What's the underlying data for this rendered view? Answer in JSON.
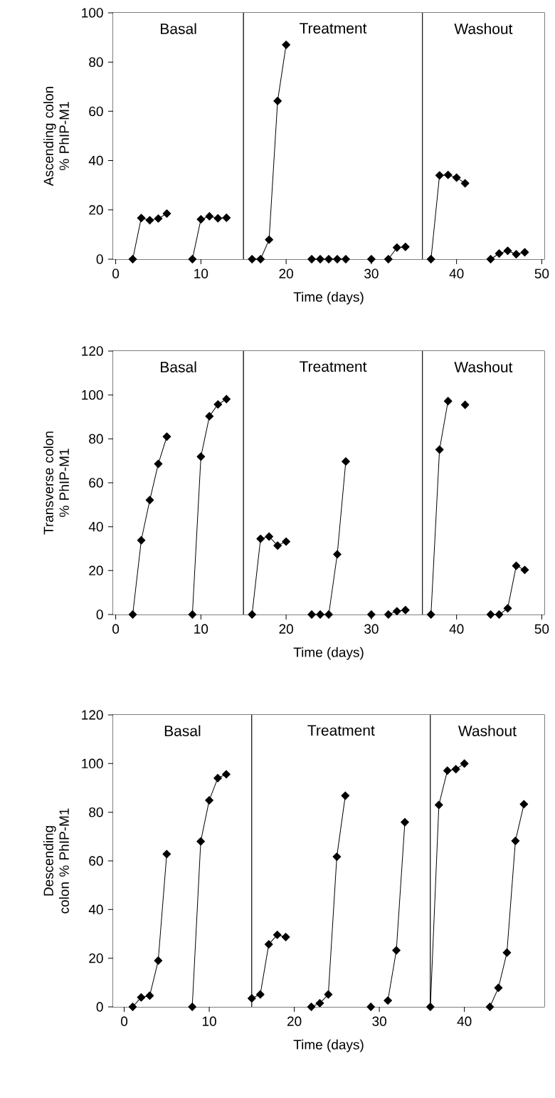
{
  "chart_data": [
    {
      "type": "line",
      "xlabel": "Time (days)",
      "ylabel": "Ascending colon % PhIP-M1",
      "marker": "diamond",
      "line_style": "solid",
      "xlim": [
        -0.3,
        50.3
      ],
      "ylim": [
        0,
        100
      ],
      "xticks": [
        0,
        10,
        20,
        30,
        40,
        50
      ],
      "yticks": [
        0,
        20,
        40,
        60,
        80,
        100
      ],
      "bands": [
        {
          "axis": "x",
          "from": -0.3,
          "to": 15,
          "label": "Basal",
          "color": "#ffffff"
        },
        {
          "axis": "x",
          "from": 15,
          "to": 36,
          "label": "Treatment",
          "color": "#ffffff"
        },
        {
          "axis": "x",
          "from": 36,
          "to": 50.3,
          "label": "Washout",
          "color": "#ffffff"
        }
      ],
      "series": [
        {
          "color": "#000000",
          "x": [
            2,
            3,
            4,
            5,
            6
          ],
          "values": [
            0,
            16.7,
            15.8,
            16.5,
            18.5
          ]
        },
        {
          "color": "#000000",
          "x": [
            9,
            10,
            11,
            12,
            13
          ],
          "values": [
            0,
            16.2,
            17.4,
            16.6,
            16.8
          ]
        },
        {
          "color": "#000000",
          "x": [
            16,
            17,
            18,
            19,
            20
          ],
          "values": [
            0,
            0,
            7.9,
            64.2,
            87
          ]
        },
        {
          "color": "#000000",
          "x": [
            23,
            24,
            25,
            26,
            27
          ],
          "values": [
            0,
            0,
            0,
            0,
            0
          ]
        },
        {
          "color": "#000000",
          "x": [
            30
          ],
          "values": [
            0
          ]
        },
        {
          "color": "#000000",
          "x": [
            32,
            33,
            34
          ],
          "values": [
            0,
            4.7,
            5
          ]
        },
        {
          "color": "#000000",
          "x": [
            37,
            38,
            39,
            40,
            41
          ],
          "values": [
            0,
            34,
            34.2,
            33.1,
            30.8
          ]
        },
        {
          "color": "#000000",
          "x": [
            44,
            45,
            46,
            47,
            48
          ],
          "values": [
            0,
            2.3,
            3.4,
            2,
            2.8
          ]
        }
      ]
    },
    {
      "type": "line",
      "xlabel": "Time (days)",
      "ylabel": "Transverse colon % PhIP-M1",
      "marker": "diamond",
      "line_style": "solid",
      "xlim": [
        -0.3,
        50.3
      ],
      "ylim": [
        0,
        120
      ],
      "xticks": [
        0,
        10,
        20,
        30,
        40,
        50
      ],
      "yticks": [
        0,
        20,
        40,
        60,
        80,
        100,
        120
      ],
      "bands": [
        {
          "axis": "x",
          "from": -0.3,
          "to": 15,
          "label": "Basal",
          "color": "#ffffff"
        },
        {
          "axis": "x",
          "from": 15,
          "to": 36,
          "label": "Treatment",
          "color": "#ffffff"
        },
        {
          "axis": "x",
          "from": 36,
          "to": 50.3,
          "label": "Washout",
          "color": "#ffffff"
        }
      ],
      "series": [
        {
          "color": "#000000",
          "x": [
            2,
            3,
            4,
            5,
            6
          ],
          "values": [
            0,
            33.8,
            52.1,
            68.6,
            81
          ]
        },
        {
          "color": "#000000",
          "x": [
            9,
            10,
            11,
            12,
            13
          ],
          "values": [
            0,
            71.9,
            90.3,
            95.7,
            98.1
          ]
        },
        {
          "color": "#000000",
          "x": [
            16,
            17,
            18,
            19,
            20
          ],
          "values": [
            0,
            34.5,
            35.5,
            31.4,
            33.2
          ]
        },
        {
          "color": "#000000",
          "x": [
            23,
            24,
            25,
            26,
            27
          ],
          "values": [
            0,
            0,
            0,
            27.4,
            69.7
          ]
        },
        {
          "color": "#000000",
          "x": [
            30
          ],
          "values": [
            0
          ]
        },
        {
          "color": "#000000",
          "x": [
            32,
            33,
            34
          ],
          "values": [
            0,
            1.5,
            2
          ]
        },
        {
          "color": "#000000",
          "x": [
            37,
            38,
            39
          ],
          "values": [
            0,
            75.1,
            97.2
          ]
        },
        {
          "color": "#000000",
          "x": [
            41
          ],
          "values": [
            95.5
          ]
        },
        {
          "color": "#000000",
          "x": [
            44,
            45,
            46,
            47,
            48
          ],
          "values": [
            0,
            0,
            2.8,
            22.2,
            20.3
          ]
        }
      ]
    },
    {
      "type": "line",
      "xlabel": "Time (days)",
      "ylabel": "Descending colon % PhIP-M1",
      "marker": "diamond",
      "line_style": "solid",
      "xlim": [
        -1.3,
        49.4
      ],
      "ylim": [
        0,
        120
      ],
      "xticks": [
        0,
        10,
        20,
        30,
        40
      ],
      "yticks": [
        0,
        20,
        40,
        60,
        80,
        100,
        120
      ],
      "bands": [
        {
          "axis": "x",
          "from": -1.3,
          "to": 15,
          "label": "Basal",
          "color": "#ffffff"
        },
        {
          "axis": "x",
          "from": 15,
          "to": 36,
          "label": "Treatment",
          "color": "#ffffff"
        },
        {
          "axis": "x",
          "from": 36,
          "to": 49.4,
          "label": "Washout",
          "color": "#ffffff"
        }
      ],
      "series": [
        {
          "color": "#000000",
          "x": [
            1,
            2,
            3,
            4,
            5
          ],
          "values": [
            0,
            3.9,
            4.6,
            19,
            62.8
          ]
        },
        {
          "color": "#000000",
          "x": [
            8,
            9,
            10,
            11,
            12
          ],
          "values": [
            0,
            68,
            84.9,
            94,
            95.6
          ]
        },
        {
          "color": "#000000",
          "x": [
            15,
            16,
            17,
            18,
            19
          ],
          "values": [
            3.5,
            5.1,
            25.7,
            29.6,
            28.7
          ]
        },
        {
          "color": "#000000",
          "x": [
            22,
            23,
            24,
            25,
            26
          ],
          "values": [
            0,
            1.5,
            5.1,
            61.7,
            86.8
          ]
        },
        {
          "color": "#000000",
          "x": [
            29
          ],
          "values": [
            0
          ]
        },
        {
          "color": "#000000",
          "x": [
            31,
            32,
            33
          ],
          "values": [
            2.6,
            23.2,
            75.9
          ]
        },
        {
          "color": "#000000",
          "x": [
            36,
            37,
            38,
            39,
            40
          ],
          "values": [
            0,
            83,
            97.1,
            97.7,
            100
          ]
        },
        {
          "color": "#000000",
          "x": [
            43,
            44,
            45,
            46,
            47
          ],
          "values": [
            0,
            7.8,
            22.3,
            68.2,
            83.3
          ]
        }
      ]
    }
  ]
}
